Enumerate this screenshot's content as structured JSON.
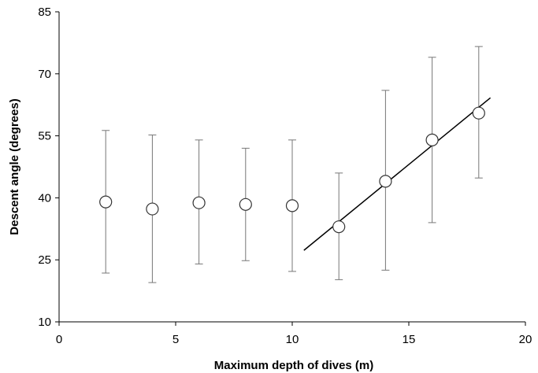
{
  "chart_data": {
    "type": "scatter",
    "title": "",
    "xlabel": "Maximum depth of dives (m)",
    "ylabel": "Descent angle (degrees)",
    "xlim": [
      0,
      20
    ],
    "ylim": [
      10,
      85
    ],
    "x_ticks": [
      0,
      5,
      10,
      15,
      20
    ],
    "y_ticks": [
      10,
      25,
      40,
      55,
      70,
      85
    ],
    "grid": false,
    "legend": "none",
    "series": [
      {
        "x": [
          2,
          4,
          6,
          8,
          10,
          12,
          14,
          16,
          18
        ],
        "y": [
          39,
          37.3,
          38.8,
          38.4,
          38.1,
          33,
          44,
          54,
          60.5
        ],
        "y_upper": [
          56.3,
          55.2,
          54,
          52,
          54,
          46,
          66,
          74,
          76.6
        ],
        "y_lower": [
          21.8,
          19.5,
          24,
          24.8,
          22.2,
          20.2,
          22.5,
          34,
          44.8
        ]
      }
    ],
    "trendline": {
      "x": [
        10.5,
        18.5
      ],
      "y": [
        27.3,
        64.2
      ]
    },
    "colors": {
      "marker_fill": "#ffffff",
      "marker_stroke": "#333333",
      "error_bar": "#777777",
      "trendline": "#000000"
    }
  }
}
